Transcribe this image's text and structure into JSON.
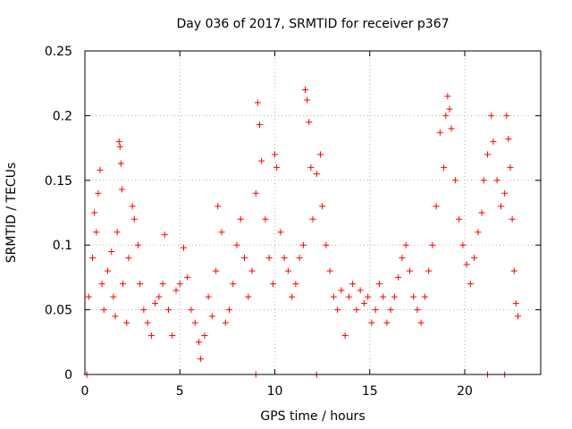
{
  "chart_data": {
    "type": "scatter",
    "title": "Day 036 of 2017, SRMTID for receiver p367",
    "xlabel": "GPS time / hours",
    "ylabel": "SRMTID / TECUs",
    "xlim": [
      0,
      24
    ],
    "ylim": [
      0,
      0.25
    ],
    "x_ticks": [
      0,
      5,
      10,
      15,
      20
    ],
    "x_tick_labels": [
      "0",
      "5",
      "10",
      "15",
      "20"
    ],
    "y_ticks": [
      0,
      0.05,
      0.1,
      0.15,
      0.2,
      0.25
    ],
    "y_tick_labels": [
      "0",
      "0.05",
      "0.1",
      "0.15",
      "0.2",
      "0.25"
    ],
    "grid": true,
    "marker": "+",
    "marker_color": "#ff0000",
    "series": [
      {
        "name": "SRMTID",
        "points": [
          [
            0.1,
            0.0
          ],
          [
            9.0,
            0.0
          ],
          [
            12.2,
            0.0
          ],
          [
            21.2,
            0.0
          ],
          [
            22.1,
            0.0
          ],
          [
            0.2,
            0.06
          ],
          [
            0.4,
            0.09
          ],
          [
            0.5,
            0.125
          ],
          [
            0.6,
            0.11
          ],
          [
            0.7,
            0.14
          ],
          [
            0.8,
            0.158
          ],
          [
            0.9,
            0.07
          ],
          [
            1.0,
            0.05
          ],
          [
            1.2,
            0.08
          ],
          [
            1.4,
            0.095
          ],
          [
            1.5,
            0.06
          ],
          [
            1.6,
            0.045
          ],
          [
            1.7,
            0.11
          ],
          [
            1.8,
            0.18
          ],
          [
            1.85,
            0.176
          ],
          [
            1.9,
            0.163
          ],
          [
            1.95,
            0.143
          ],
          [
            2.0,
            0.07
          ],
          [
            2.2,
            0.04
          ],
          [
            2.3,
            0.09
          ],
          [
            2.5,
            0.13
          ],
          [
            2.6,
            0.12
          ],
          [
            2.8,
            0.1
          ],
          [
            2.9,
            0.07
          ],
          [
            3.1,
            0.05
          ],
          [
            3.3,
            0.04
          ],
          [
            3.5,
            0.03
          ],
          [
            3.7,
            0.055
          ],
          [
            3.9,
            0.06
          ],
          [
            4.1,
            0.07
          ],
          [
            4.2,
            0.108
          ],
          [
            4.4,
            0.05
          ],
          [
            4.6,
            0.03
          ],
          [
            4.8,
            0.065
          ],
          [
            5.0,
            0.07
          ],
          [
            5.2,
            0.098
          ],
          [
            5.4,
            0.075
          ],
          [
            5.6,
            0.05
          ],
          [
            5.8,
            0.04
          ],
          [
            6.0,
            0.025
          ],
          [
            6.1,
            0.012
          ],
          [
            6.3,
            0.03
          ],
          [
            6.5,
            0.06
          ],
          [
            6.7,
            0.045
          ],
          [
            6.9,
            0.08
          ],
          [
            7.0,
            0.13
          ],
          [
            7.2,
            0.11
          ],
          [
            7.4,
            0.04
          ],
          [
            7.6,
            0.05
          ],
          [
            7.8,
            0.07
          ],
          [
            8.0,
            0.1
          ],
          [
            8.2,
            0.12
          ],
          [
            8.4,
            0.09
          ],
          [
            8.6,
            0.06
          ],
          [
            8.8,
            0.08
          ],
          [
            9.0,
            0.14
          ],
          [
            9.1,
            0.21
          ],
          [
            9.2,
            0.193
          ],
          [
            9.3,
            0.165
          ],
          [
            9.5,
            0.12
          ],
          [
            9.7,
            0.09
          ],
          [
            9.9,
            0.07
          ],
          [
            10.0,
            0.17
          ],
          [
            10.1,
            0.16
          ],
          [
            10.3,
            0.11
          ],
          [
            10.5,
            0.09
          ],
          [
            10.7,
            0.08
          ],
          [
            10.9,
            0.06
          ],
          [
            11.1,
            0.07
          ],
          [
            11.3,
            0.09
          ],
          [
            11.5,
            0.1
          ],
          [
            11.6,
            0.22
          ],
          [
            11.7,
            0.212
          ],
          [
            11.8,
            0.195
          ],
          [
            11.9,
            0.16
          ],
          [
            12.0,
            0.12
          ],
          [
            12.2,
            0.155
          ],
          [
            12.4,
            0.17
          ],
          [
            12.5,
            0.13
          ],
          [
            12.7,
            0.1
          ],
          [
            12.9,
            0.08
          ],
          [
            13.1,
            0.06
          ],
          [
            13.3,
            0.05
          ],
          [
            13.5,
            0.065
          ],
          [
            13.7,
            0.03
          ],
          [
            13.9,
            0.06
          ],
          [
            14.1,
            0.07
          ],
          [
            14.3,
            0.05
          ],
          [
            14.5,
            0.065
          ],
          [
            14.7,
            0.055
          ],
          [
            14.9,
            0.06
          ],
          [
            15.1,
            0.04
          ],
          [
            15.3,
            0.05
          ],
          [
            15.5,
            0.07
          ],
          [
            15.7,
            0.06
          ],
          [
            15.9,
            0.04
          ],
          [
            16.1,
            0.05
          ],
          [
            16.3,
            0.06
          ],
          [
            16.5,
            0.075
          ],
          [
            16.7,
            0.09
          ],
          [
            16.9,
            0.1
          ],
          [
            17.1,
            0.08
          ],
          [
            17.3,
            0.06
          ],
          [
            17.5,
            0.05
          ],
          [
            17.7,
            0.04
          ],
          [
            17.9,
            0.06
          ],
          [
            18.1,
            0.08
          ],
          [
            18.3,
            0.1
          ],
          [
            18.5,
            0.13
          ],
          [
            18.7,
            0.187
          ],
          [
            18.9,
            0.16
          ],
          [
            19.0,
            0.2
          ],
          [
            19.1,
            0.215
          ],
          [
            19.2,
            0.205
          ],
          [
            19.3,
            0.19
          ],
          [
            19.5,
            0.15
          ],
          [
            19.7,
            0.12
          ],
          [
            19.9,
            0.1
          ],
          [
            20.1,
            0.085
          ],
          [
            20.3,
            0.07
          ],
          [
            20.5,
            0.09
          ],
          [
            20.7,
            0.11
          ],
          [
            20.9,
            0.125
          ],
          [
            21.0,
            0.15
          ],
          [
            21.2,
            0.17
          ],
          [
            21.4,
            0.2
          ],
          [
            21.5,
            0.18
          ],
          [
            21.7,
            0.15
          ],
          [
            21.9,
            0.13
          ],
          [
            22.1,
            0.14
          ],
          [
            22.2,
            0.2
          ],
          [
            22.3,
            0.182
          ],
          [
            22.4,
            0.16
          ],
          [
            22.5,
            0.12
          ],
          [
            22.6,
            0.08
          ],
          [
            22.7,
            0.055
          ],
          [
            22.8,
            0.045
          ]
        ]
      }
    ]
  }
}
